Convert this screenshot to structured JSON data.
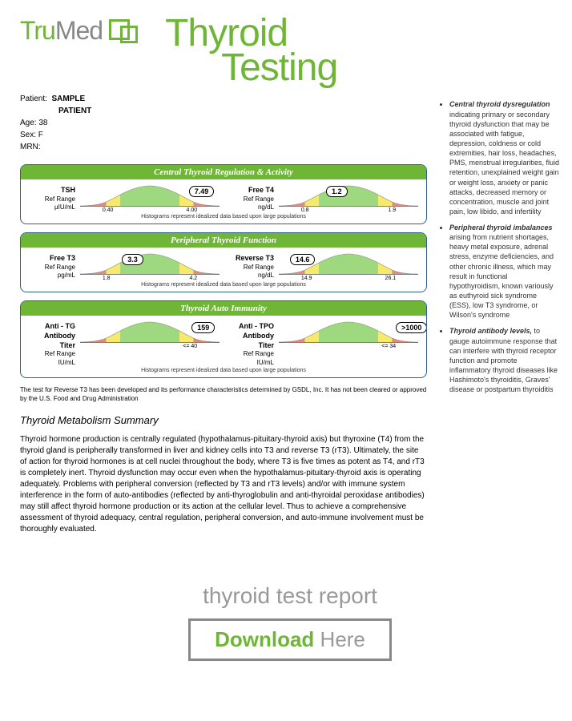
{
  "logo": {
    "tru": "Tru",
    "med": "Med"
  },
  "title": {
    "line1": "Thyroid",
    "line2": "Testing"
  },
  "patient": {
    "patient_label": "Patient:",
    "name_line1": "SAMPLE",
    "name_line2": "PATIENT",
    "age_label": "Age:",
    "age": "38",
    "sex_label": "Sex:",
    "sex": "F",
    "mrn_label": "MRN:"
  },
  "sections": [
    {
      "title": "Central Thyroid Regulation & Activity",
      "metrics": [
        {
          "name": "TSH",
          "ref": "Ref Range",
          "unit": "μIU/mL",
          "lo": "0.40",
          "hi": "4.00",
          "value": "7.49",
          "bubble_left": "78%"
        },
        {
          "name": "Free T4",
          "ref": "Ref Range",
          "unit": "ng/dL",
          "lo": "0.8",
          "hi": "1.9",
          "value": "1.2",
          "bubble_left": "34%"
        }
      ],
      "footnote": "Histograms represent idealized data based upon large populations"
    },
    {
      "title": "Peripheral Thyroid Function",
      "metrics": [
        {
          "name": "Free T3",
          "ref": "Ref Range",
          "unit": "pg/mL",
          "lo": "1.8",
          "hi": "4.2",
          "value": "3.3",
          "bubble_left": "30%"
        },
        {
          "name": "Reverse T3",
          "ref": "Ref Range",
          "unit": "ng/dL",
          "lo": "14.9",
          "hi": "26.1",
          "value": "14.6",
          "bubble_left": "8%"
        }
      ],
      "footnote": "Histograms represent idealized data based upon large populations"
    },
    {
      "title": "Thyroid Auto Immunity",
      "metrics": [
        {
          "name": "Anti - TG Antibody Titer",
          "ref": "Ref Range",
          "unit": "IU/mL",
          "lo": "",
          "hi": "<= 40",
          "value": "159",
          "bubble_left": "80%"
        },
        {
          "name": "Anti - TPO Antibody Titer",
          "ref": "Ref Range",
          "unit": "IU/mL",
          "lo": "",
          "hi": "<= 34",
          "value": ">1000",
          "bubble_left": "84%"
        }
      ],
      "footnote": "Histograms represent idealized data based upon large populations"
    }
  ],
  "fda_note": "The test for Reverse T3 has been developed and its performance characteristics determined by GSDL, Inc.  It has not been cleared or approved by the U.S. Food and Drug Administration",
  "summary": {
    "title": "Thyroid Metabolism Summary",
    "body": "Thyroid hormone production is centrally regulated (hypothalamus-pituitary-thyroid axis) but thyroxine (T4) from the thyroid gland is peripherally transformed in liver and kidney cells into T3 and reverse T3 (rT3). Ultimately, the site of action for thyroid hormones is at cell nuclei throughout the body, where T3 is five times as potent as T4, and rT3 is completely inert. Thyroid dysfunction may occur even when the hypothalamus-pituitary-thyroid axis is operating adequately. Problems with peripheral conversion (reflected by T3 and rT3 levels) and/or with immune system interference in the form of auto-antibodies (reflected by anti-thyroglobulin and anti-thyroidal peroxidase antibodies) may still affect thyroid hormone production or its action at the cellular level. Thus to achieve a comprehensive assessment of thyroid adequacy, central regulation, peripheral conversion, and auto-immune involvement must be thoroughly evaluated."
  },
  "sidebar": [
    {
      "lead": "Central thyroid dysregulation",
      "text": " indicating primary or secondary thyroid dysfunction that may be associated with fatigue, depression, coldness or cold extremities, hair loss, headaches, PMS, menstrual irregularities, fluid retention, unexplained weight gain or weight loss, anxiety or panic attacks, decreased memory or concentration, muscle and joint pain, low libido, and infertility"
    },
    {
      "lead": "Peripheral thyroid imbalances",
      "text": " arising from nutrient shortages, heavy metal exposure, adrenal stress, enzyme deficiencies, and other chronic illness, which may result in functional hypothyroidism, known variously as euthyroid sick syndrome (ESS), low T3 syndrome, or Wilson's syndrome"
    },
    {
      "lead": "Thyroid antibody levels,",
      "text": " to gauge autoimmune response that can interfere with thyroid receptor function and promote inflammatory thyroid diseases like Hashimoto's thyroiditis, Graves' disease or postpartum thyroiditis"
    }
  ],
  "download": {
    "title": "thyroid test report",
    "btn_green": "Download",
    "btn_grey": " Here"
  },
  "colors": {
    "green": "#6fb536",
    "curve_green": "#9fd97f",
    "curve_yellow": "#f7e96a",
    "curve_red": "#e88a7a",
    "border_blue": "#2d5f8f"
  }
}
